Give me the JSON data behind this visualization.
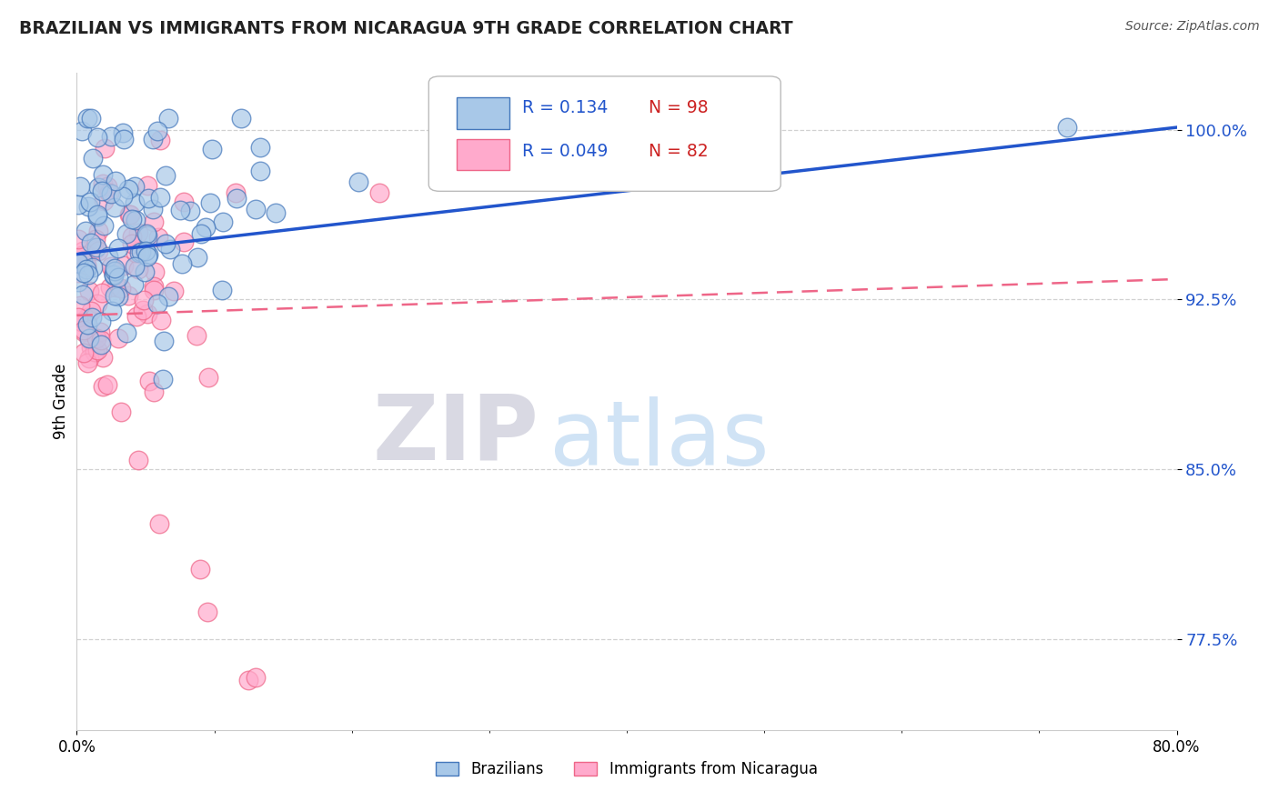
{
  "title": "BRAZILIAN VS IMMIGRANTS FROM NICARAGUA 9TH GRADE CORRELATION CHART",
  "source": "Source: ZipAtlas.com",
  "ylabel": "9th Grade",
  "xlim": [
    0.0,
    0.8
  ],
  "ylim": [
    0.735,
    1.025
  ],
  "yticks": [
    0.775,
    0.85,
    0.925,
    1.0
  ],
  "ytick_labels": [
    "77.5%",
    "85.0%",
    "92.5%",
    "100.0%"
  ],
  "r_blue": 0.134,
  "n_blue": 98,
  "r_pink": 0.049,
  "n_pink": 82,
  "legend_label_blue": "Brazilians",
  "legend_label_pink": "Immigrants from Nicaragua",
  "blue_face": "#A8C8E8",
  "blue_edge": "#4477BB",
  "pink_face": "#FFAACC",
  "pink_edge": "#EE6688",
  "trendline_blue": "#2255CC",
  "trendline_pink": "#EE6688",
  "watermark_zip": "#BBBBCC",
  "watermark_atlas": "#AACCEE",
  "background_color": "#FFFFFF",
  "grid_color": "#CCCCCC",
  "ytick_color": "#2255CC"
}
